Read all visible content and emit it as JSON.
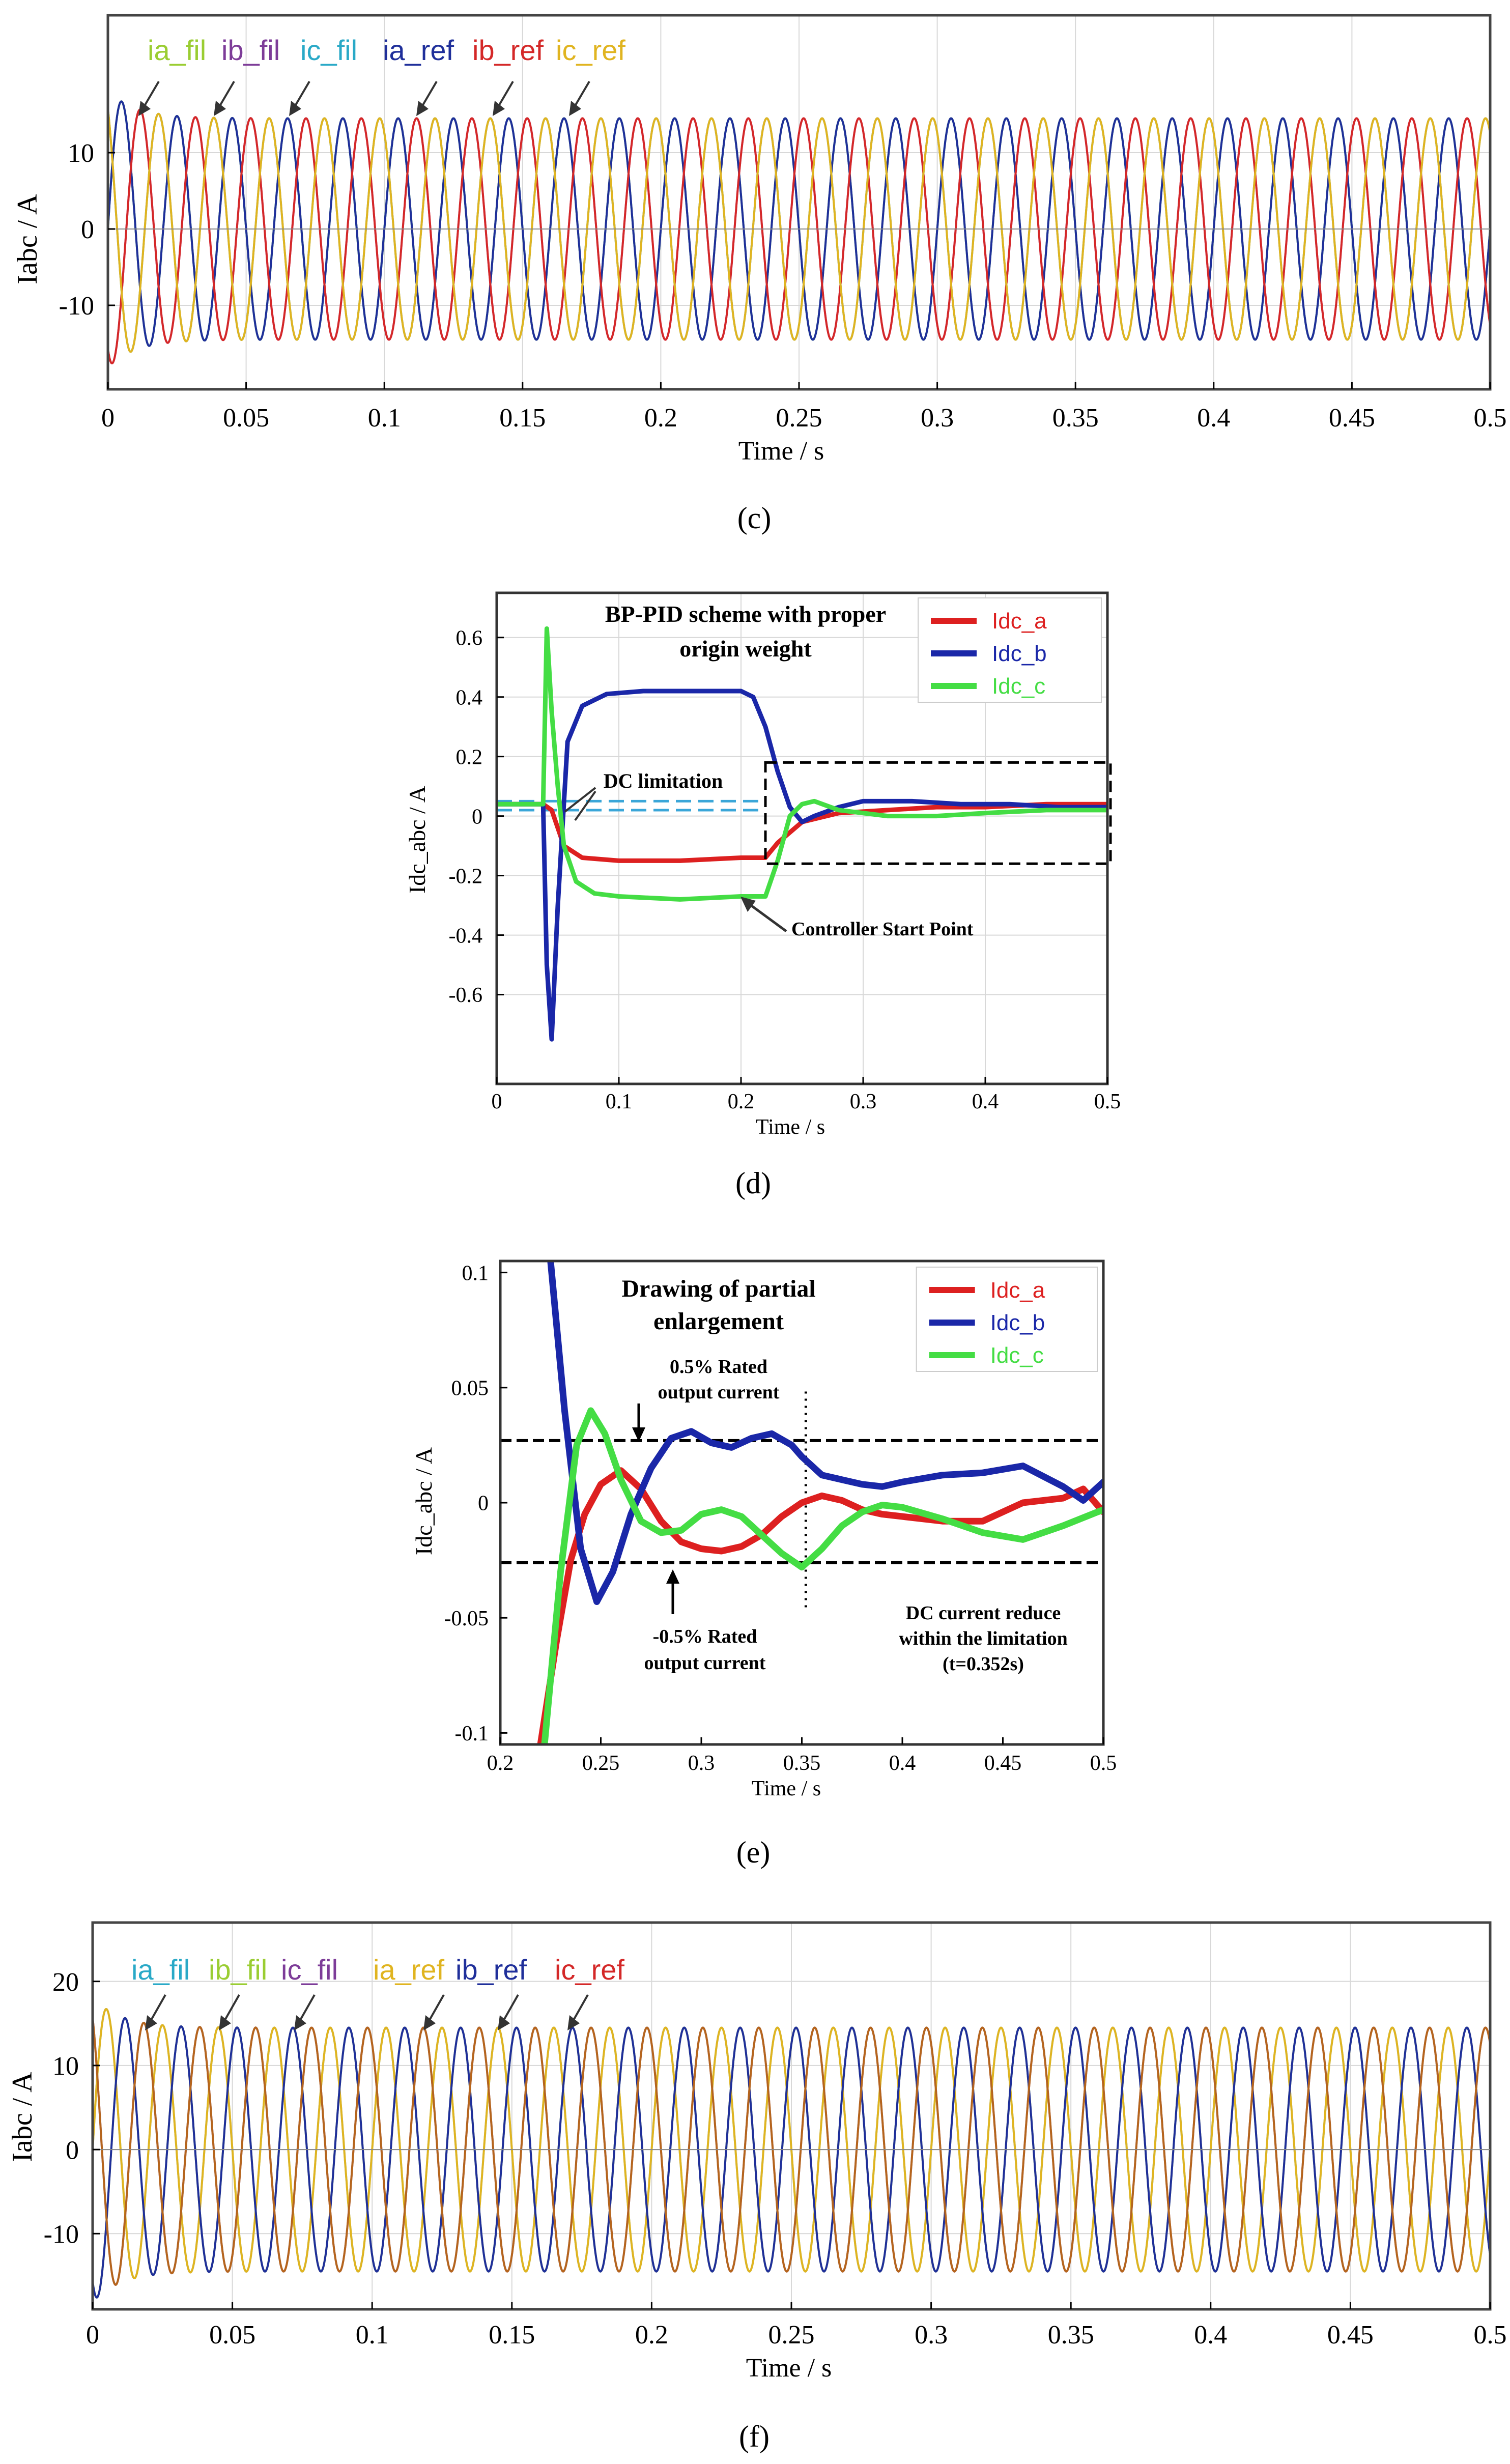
{
  "chart_data": [
    {
      "id": "c",
      "type": "line",
      "caption": "(c)",
      "title": "",
      "xlabel": "Time / s",
      "ylabel": "Iabc / A",
      "xlim": [
        0,
        0.5
      ],
      "ylim": [
        -21,
        28
      ],
      "xticks": [
        0,
        0.05,
        0.1,
        0.15,
        0.2,
        0.25,
        0.3,
        0.35,
        0.4,
        0.45,
        0.5
      ],
      "xtick_labels": [
        "0",
        "0.05",
        "0.1",
        "0.15",
        "0.2",
        "0.25",
        "0.3",
        "0.35",
        "0.4",
        "0.45",
        "0.5"
      ],
      "yticks": [
        -10,
        0,
        10
      ],
      "ytick_labels": [
        "-10",
        "0",
        "10"
      ],
      "grid": true,
      "legend": [
        "ia_fil",
        "ib_fil",
        "ic_fil",
        "ia_ref",
        "ib_ref",
        "ic_ref"
      ],
      "legend_colors": [
        "#9acd32",
        "#7d3c98",
        "#29a9c7",
        "#1f2f9a",
        "#d42828",
        "#e0b420"
      ],
      "series": [
        {
          "name": "ia_fil",
          "color": "#38c040",
          "frequency_hz": 50,
          "amplitude_a": 14.5,
          "phase_deg": 0
        },
        {
          "name": "ib_fil",
          "color": "#c050c8",
          "frequency_hz": 50,
          "amplitude_a": 14.5,
          "phase_deg": -120
        },
        {
          "name": "ic_fil",
          "color": "#29a9c7",
          "frequency_hz": 50,
          "amplitude_a": 14.5,
          "phase_deg": 120
        },
        {
          "name": "ia_ref",
          "color": "#1f2f9a",
          "frequency_hz": 50,
          "amplitude_a": 14.5,
          "phase_deg": 0
        },
        {
          "name": "ib_ref",
          "color": "#d42828",
          "frequency_hz": 50,
          "amplitude_a": 14.5,
          "phase_deg": -120
        },
        {
          "name": "ic_ref",
          "color": "#e0b420",
          "frequency_hz": 50,
          "amplitude_a": 14.5,
          "phase_deg": 120
        }
      ]
    },
    {
      "id": "d",
      "type": "line",
      "caption": "(d)",
      "title": "BP-PID scheme with proper origin weight",
      "xlabel": "Time / s",
      "ylabel": "Idc_abc / A",
      "xlim": [
        0,
        0.5
      ],
      "ylim": [
        -0.9,
        0.75
      ],
      "xticks": [
        0,
        0.1,
        0.2,
        0.3,
        0.4,
        0.5
      ],
      "xtick_labels": [
        "0",
        "0.1",
        "0.2",
        "0.3",
        "0.4",
        "0.5"
      ],
      "yticks": [
        -0.6,
        -0.4,
        -0.2,
        0,
        0.2,
        0.4,
        0.6
      ],
      "ytick_labels": [
        "-0.6",
        "-0.4",
        "-0.2",
        "0",
        "0.2",
        "0.4",
        "0.6"
      ],
      "grid": true,
      "legend": [
        "Idc_a",
        "Idc_b",
        "Idc_c"
      ],
      "legend_position": "top-right",
      "limit_lines": [
        0.05,
        0.02
      ],
      "zoom_box": {
        "x": [
          0.22,
          0.5
        ],
        "y": [
          -0.16,
          0.18
        ]
      },
      "annotations": [
        "DC limitation",
        "Controller Start Point"
      ],
      "series": [
        {
          "name": "Idc_a",
          "color": "#dd2020",
          "x": [
            0,
            0.038,
            0.045,
            0.055,
            0.07,
            0.1,
            0.15,
            0.2,
            0.22,
            0.23,
            0.25,
            0.28,
            0.32,
            0.36,
            0.4,
            0.45,
            0.5
          ],
          "y": [
            0.04,
            0.04,
            0.02,
            -0.1,
            -0.14,
            -0.15,
            -0.15,
            -0.14,
            -0.14,
            -0.09,
            -0.02,
            0.01,
            0.02,
            0.03,
            0.03,
            0.04,
            0.04
          ]
        },
        {
          "name": "Idc_b",
          "color": "#1a27a8",
          "x": [
            0,
            0.038,
            0.041,
            0.045,
            0.05,
            0.058,
            0.07,
            0.09,
            0.12,
            0.15,
            0.2,
            0.21,
            0.22,
            0.23,
            0.24,
            0.25,
            0.26,
            0.28,
            0.3,
            0.34,
            0.38,
            0.42,
            0.46,
            0.5
          ],
          "y": [
            0.04,
            0.04,
            -0.5,
            -0.75,
            -0.3,
            0.25,
            0.37,
            0.41,
            0.42,
            0.42,
            0.42,
            0.4,
            0.3,
            0.15,
            0.03,
            -0.02,
            0,
            0.03,
            0.05,
            0.05,
            0.04,
            0.04,
            0.03,
            0.03
          ]
        },
        {
          "name": "Idc_c",
          "color": "#44dd44",
          "x": [
            0,
            0.038,
            0.041,
            0.045,
            0.05,
            0.055,
            0.065,
            0.08,
            0.1,
            0.15,
            0.2,
            0.22,
            0.23,
            0.24,
            0.25,
            0.26,
            0.28,
            0.32,
            0.36,
            0.4,
            0.45,
            0.5
          ],
          "y": [
            0.04,
            0.04,
            0.63,
            0.35,
            0.1,
            -0.1,
            -0.22,
            -0.26,
            -0.27,
            -0.28,
            -0.27,
            -0.27,
            -0.15,
            0,
            0.04,
            0.05,
            0.02,
            0,
            0,
            0.01,
            0.02,
            0.02
          ]
        }
      ]
    },
    {
      "id": "e",
      "type": "line",
      "caption": "(e)",
      "title": "Drawing of partial enlargement",
      "xlabel": "Time / s",
      "ylabel": "Idc_abc / A",
      "xlim": [
        0.2,
        0.5
      ],
      "ylim": [
        -0.105,
        0.105
      ],
      "xticks": [
        0.2,
        0.25,
        0.3,
        0.35,
        0.4,
        0.45,
        0.5
      ],
      "xtick_labels": [
        "0.2",
        "0.25",
        "0.3",
        "0.35",
        "0.4",
        "0.45",
        "0.5"
      ],
      "yticks": [
        -0.1,
        -0.05,
        0,
        0.05,
        0.1
      ],
      "ytick_labels": [
        "-0.1",
        "-0.05",
        "0",
        "0.05",
        "0.1"
      ],
      "grid": false,
      "legend": [
        "Idc_a",
        "Idc_b",
        "Idc_c"
      ],
      "legend_position": "top-right",
      "limit_lines": [
        0.027,
        -0.026
      ],
      "vline_x": 0.352,
      "annotations": [
        "0.5% Rated output current",
        "-0.5% Rated output current",
        "DC current reduce within the limitation (t=0.352s)"
      ],
      "series": [
        {
          "name": "Idc_a",
          "color": "#dd2020",
          "x": [
            0.22,
            0.228,
            0.235,
            0.242,
            0.25,
            0.26,
            0.27,
            0.28,
            0.29,
            0.3,
            0.31,
            0.32,
            0.33,
            0.34,
            0.35,
            0.36,
            0.37,
            0.38,
            0.39,
            0.4,
            0.42,
            0.44,
            0.46,
            0.48,
            0.49,
            0.5
          ],
          "y": [
            -0.105,
            -0.06,
            -0.025,
            -0.005,
            0.008,
            0.014,
            0.006,
            -0.008,
            -0.017,
            -0.02,
            -0.021,
            -0.019,
            -0.014,
            -0.006,
            0,
            0.003,
            0.001,
            -0.003,
            -0.005,
            -0.006,
            -0.008,
            -0.008,
            0,
            0.002,
            0.006,
            -0.004
          ]
        },
        {
          "name": "Idc_b",
          "color": "#1a27a8",
          "x": [
            0.225,
            0.232,
            0.24,
            0.248,
            0.256,
            0.265,
            0.275,
            0.285,
            0.295,
            0.305,
            0.315,
            0.325,
            0.335,
            0.345,
            0.35,
            0.36,
            0.37,
            0.38,
            0.39,
            0.4,
            0.42,
            0.44,
            0.46,
            0.48,
            0.49,
            0.5
          ],
          "y": [
            0.105,
            0.04,
            -0.02,
            -0.043,
            -0.03,
            -0.005,
            0.015,
            0.028,
            0.031,
            0.026,
            0.024,
            0.028,
            0.03,
            0.025,
            0.02,
            0.012,
            0.01,
            0.008,
            0.007,
            0.009,
            0.012,
            0.013,
            0.016,
            0.007,
            0.001,
            0.009
          ]
        },
        {
          "name": "Idc_c",
          "color": "#44dd44",
          "x": [
            0.222,
            0.23,
            0.238,
            0.245,
            0.252,
            0.26,
            0.27,
            0.28,
            0.29,
            0.3,
            0.31,
            0.32,
            0.33,
            0.34,
            0.35,
            0.36,
            0.37,
            0.38,
            0.39,
            0.4,
            0.42,
            0.44,
            0.46,
            0.48,
            0.5
          ],
          "y": [
            -0.105,
            -0.03,
            0.025,
            0.04,
            0.03,
            0.01,
            -0.008,
            -0.013,
            -0.012,
            -0.005,
            -0.003,
            -0.006,
            -0.014,
            -0.022,
            -0.028,
            -0.02,
            -0.01,
            -0.004,
            -0.001,
            -0.002,
            -0.007,
            -0.013,
            -0.016,
            -0.01,
            -0.003
          ]
        }
      ]
    },
    {
      "id": "f",
      "type": "line",
      "caption": "(f)",
      "title": "",
      "xlabel": "Time / s",
      "ylabel": "Iabc / A",
      "xlim": [
        0,
        0.5
      ],
      "ylim": [
        -19,
        27
      ],
      "xticks": [
        0,
        0.05,
        0.1,
        0.15,
        0.2,
        0.25,
        0.3,
        0.35,
        0.4,
        0.45,
        0.5
      ],
      "xtick_labels": [
        "0",
        "0.05",
        "0.1",
        "0.15",
        "0.2",
        "0.25",
        "0.3",
        "0.35",
        "0.4",
        "0.45",
        "0.5"
      ],
      "yticks": [
        -10,
        0,
        10,
        20
      ],
      "ytick_labels": [
        "-10",
        "0",
        "10",
        "20"
      ],
      "grid": true,
      "legend": [
        "ia_fil",
        "ib_fil",
        "ic_fil",
        "ia_ref",
        "ib_ref",
        "ic_ref"
      ],
      "legend_colors": [
        "#29a9c7",
        "#9acd32",
        "#7d3c98",
        "#e0b420",
        "#1f2f9a",
        "#d42828"
      ],
      "series": [
        {
          "name": "ia_fil",
          "color": "#6ec6e6",
          "frequency_hz": 50,
          "amplitude_a": 14.5,
          "phase_deg": 0
        },
        {
          "name": "ib_fil",
          "color": "#9acd32",
          "frequency_hz": 50,
          "amplitude_a": 14.5,
          "phase_deg": -120
        },
        {
          "name": "ic_fil",
          "color": "#a070c0",
          "frequency_hz": 50,
          "amplitude_a": 14.5,
          "phase_deg": 120
        },
        {
          "name": "ia_ref",
          "color": "#e0b420",
          "frequency_hz": 50,
          "amplitude_a": 14.5,
          "phase_deg": 0
        },
        {
          "name": "ib_ref",
          "color": "#1f2f9a",
          "frequency_hz": 50,
          "amplitude_a": 14.5,
          "phase_deg": -120
        },
        {
          "name": "ic_ref",
          "color": "#b5651d",
          "frequency_hz": 50,
          "amplitude_a": 14.5,
          "phase_deg": 120
        }
      ]
    }
  ]
}
